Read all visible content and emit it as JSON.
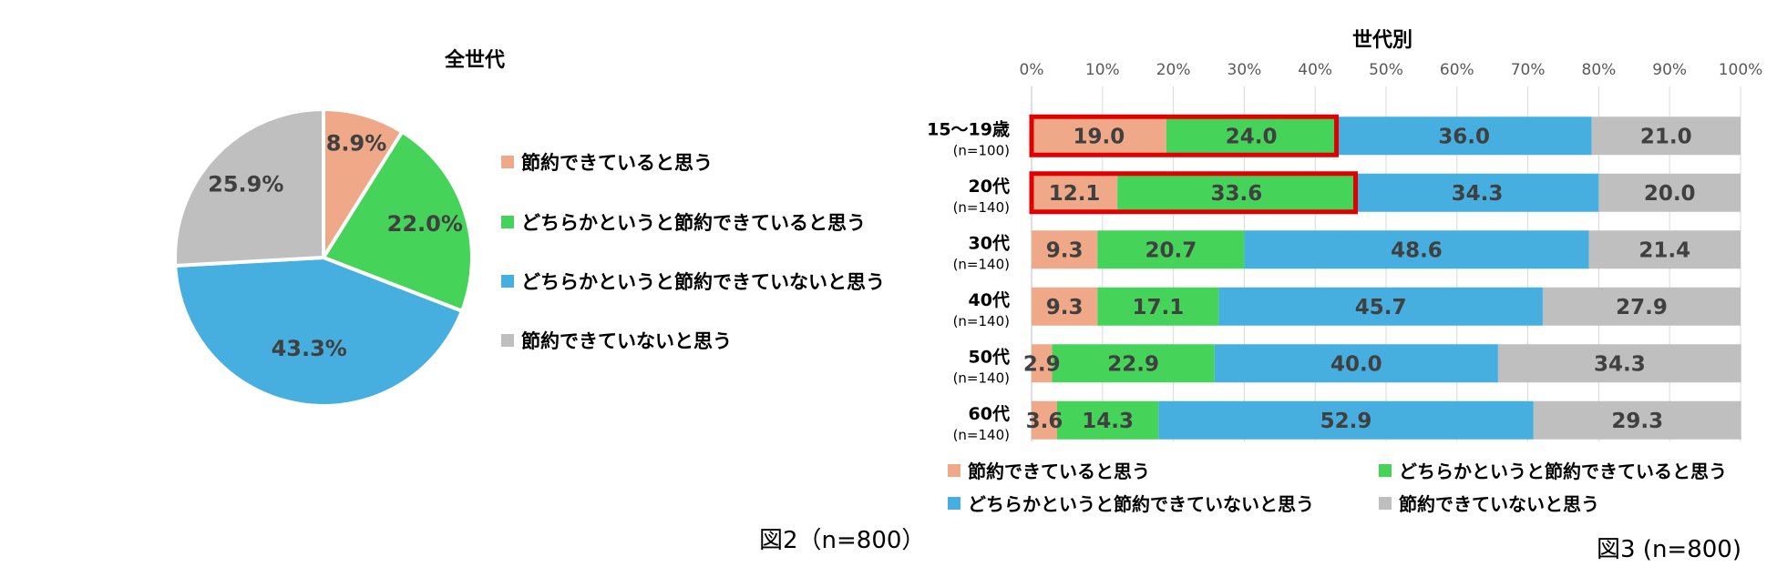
{
  "colors": {
    "saved": "#F0A988",
    "somewhat_saved": "#46D35A",
    "somewhat_not_saved": "#46AFE0",
    "not_saved": "#BFBFBF",
    "highlight": "#E00000"
  },
  "chart_data": [
    {
      "type": "pie",
      "title": "全世代",
      "categories": [
        "節約できていると思う",
        "どちらかというと節約できていると思う",
        "どちらかというと節約できていないと思う",
        "節約できていないと思う"
      ],
      "values": [
        8.9,
        22.0,
        43.3,
        25.9
      ],
      "labels": [
        "8.9%",
        "22.0%",
        "43.3%",
        "25.9%"
      ],
      "legend_position": "right",
      "caption": "図2（n=800）"
    },
    {
      "type": "bar",
      "orientation": "horizontal",
      "stacked": true,
      "title": "世代別",
      "categories": [
        "15～19歳",
        "20代",
        "30代",
        "40代",
        "50代",
        "60代"
      ],
      "category_notes": [
        "(n=100)",
        "(n=140)",
        "(n=140)",
        "(n=140)",
        "(n=140)",
        "(n=140)"
      ],
      "series": [
        {
          "name": "節約できていると思う",
          "values": [
            19.0,
            12.1,
            9.3,
            9.3,
            2.9,
            3.6
          ]
        },
        {
          "name": "どちらかというと節約できていると思う",
          "values": [
            24.0,
            33.6,
            20.7,
            17.1,
            22.9,
            14.3
          ]
        },
        {
          "name": "どちらかというと節約できていないと思う",
          "values": [
            36.0,
            34.3,
            48.6,
            45.7,
            40.0,
            52.9
          ]
        },
        {
          "name": "節約できていないと思う",
          "values": [
            21.0,
            20.0,
            21.4,
            27.9,
            34.3,
            29.3
          ]
        }
      ],
      "value_labels": [
        [
          "19.0",
          "24.0",
          "36.0",
          "21.0"
        ],
        [
          "12.1",
          "33.6",
          "34.3",
          "20.0"
        ],
        [
          "9.3",
          "20.7",
          "48.6",
          "21.4"
        ],
        [
          "9.3",
          "17.1",
          "45.7",
          "27.9"
        ],
        [
          "2.9",
          "22.9",
          "40.0",
          "34.3"
        ],
        [
          "3.6",
          "14.3",
          "52.9",
          "29.3"
        ]
      ],
      "x_ticks": [
        "0%",
        "10%",
        "20%",
        "30%",
        "40%",
        "50%",
        "60%",
        "70%",
        "80%",
        "90%",
        "100%"
      ],
      "xlim": [
        0,
        100
      ],
      "axis_position": "top",
      "grid": true,
      "highlighted_rows": [
        0,
        1
      ],
      "legend_position": "bottom",
      "caption": "図3 (n=800)"
    }
  ]
}
